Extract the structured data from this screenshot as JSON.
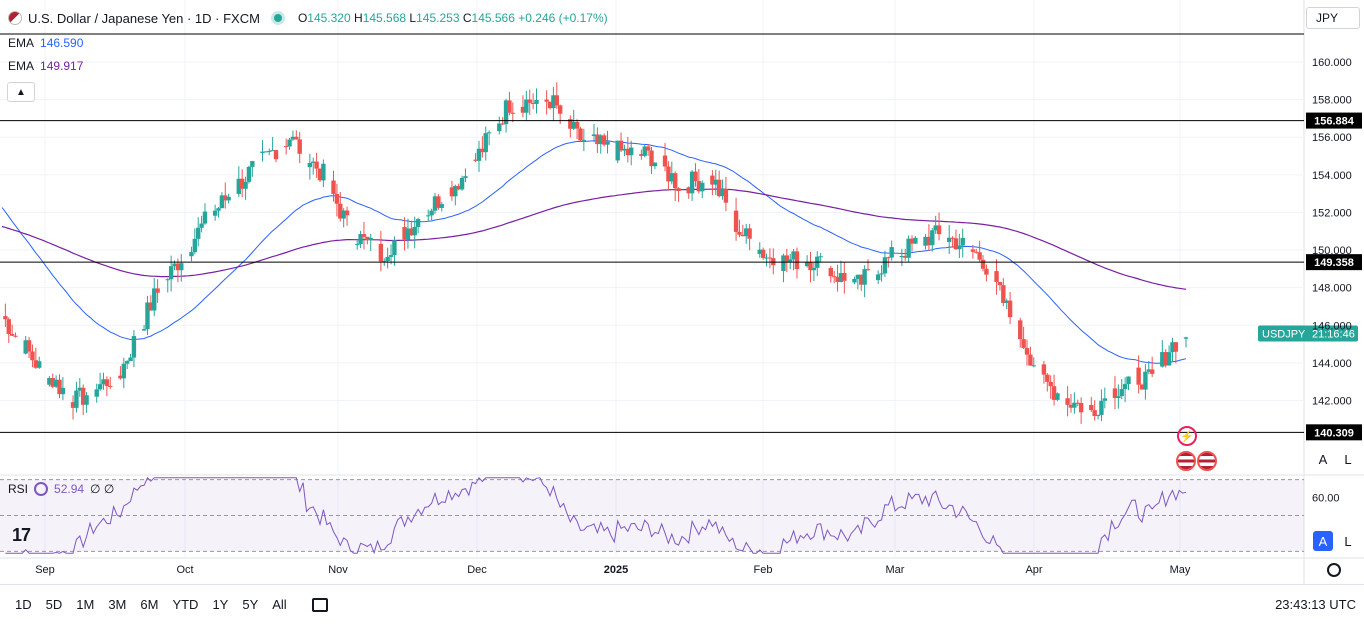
{
  "header": {
    "title": "U.S. Dollar / Japanese Yen · 1D · FXCM",
    "open_label": "O",
    "open": "145.320",
    "high_label": "H",
    "high": "145.568",
    "low_label": "L",
    "low": "145.253",
    "close_label": "C",
    "close": "145.566",
    "change": "+0.246 (+0.17%)"
  },
  "indicators": {
    "ema1_label": "EMA",
    "ema1_value": "146.590",
    "ema1_color": "#2962ff",
    "ema2_label": "EMA",
    "ema2_value": "149.917",
    "ema2_color": "#7b1fa2"
  },
  "rsi": {
    "label": "RSI",
    "value": "52.94",
    "extra": "∅ ∅",
    "color": "#7e57c2"
  },
  "currency": "JPY",
  "scale_buttons": {
    "a": "A",
    "l": "L"
  },
  "time_ranges": [
    "1D",
    "5D",
    "1M",
    "3M",
    "6M",
    "YTD",
    "1Y",
    "5Y",
    "All"
  ],
  "clock": "23:43:13 UTC",
  "colors": {
    "up": "#26a69a",
    "down": "#ef5350",
    "hline": "#000000"
  },
  "chart_data": [
    {
      "type": "candlestick",
      "symbol": "USDJPY",
      "countdown": "21:16:46",
      "x_ticks": [
        "Sep",
        "Oct",
        "Nov",
        "Dec",
        "2025",
        "Feb",
        "Mar",
        "Apr",
        "May"
      ],
      "y_ticks": [
        142,
        144,
        146,
        148,
        150,
        152,
        154,
        156,
        158,
        160
      ],
      "ylim": [
        138.2,
        161.7
      ],
      "horizontal_lines": [
        156.884,
        149.358,
        140.309
      ],
      "last_price": 145.566,
      "grid": true,
      "series": [
        {
          "name": "EMA",
          "value": 146.59
        },
        {
          "name": "EMA",
          "value": 149.917
        }
      ]
    },
    {
      "type": "line",
      "name": "RSI",
      "value": 52.94,
      "y_ticks": [
        60.0
      ],
      "levels": [
        70,
        50,
        30
      ],
      "ylim": [
        28,
        72
      ]
    }
  ]
}
